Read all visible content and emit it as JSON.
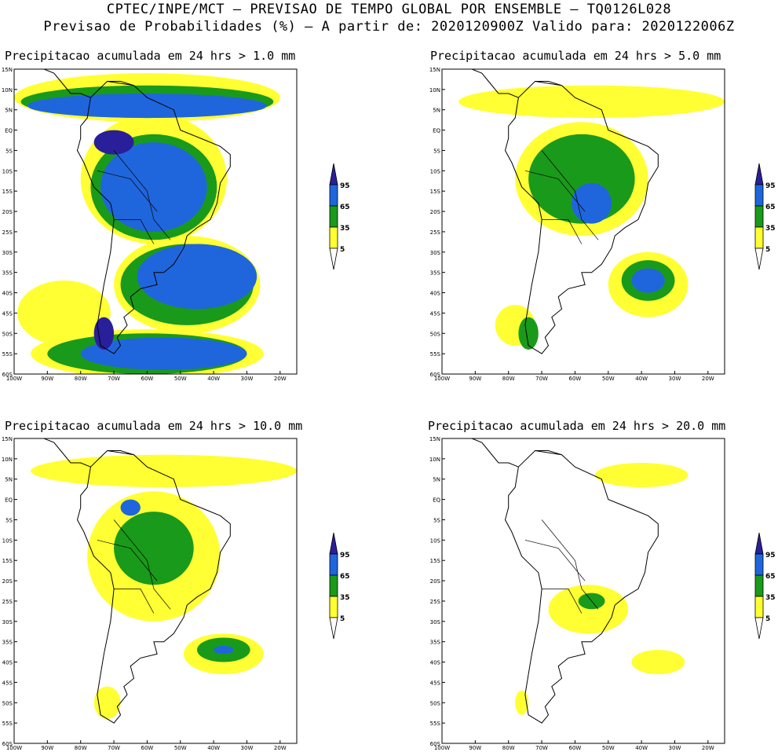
{
  "header": {
    "line1": "CPTEC/INPE/MCT – PREVISAO DE TEMPO GLOBAL POR ENSEMBLE – TQ0126L028",
    "line2": "Previsao de Probabilidades (%) –  A partir de: 2020120900Z  Valido para: 2020122006Z"
  },
  "lat_labels": [
    "15N",
    "10N",
    "5N",
    "EQ",
    "5S",
    "10S",
    "15S",
    "20S",
    "25S",
    "30S",
    "35S",
    "40S",
    "45S",
    "50S",
    "55S",
    "60S"
  ],
  "lon_labels": [
    "100W",
    "90W",
    "80W",
    "70W",
    "60W",
    "50W",
    "40W",
    "30W",
    "20W"
  ],
  "legend_levels": [
    "95",
    "65",
    "35",
    "5"
  ],
  "colors": {
    "c5": "#ffff33",
    "c35": "#1a9a1a",
    "c65": "#1f66dd",
    "c95": "#2a1f9a"
  },
  "panels": [
    {
      "title": "Precipitacao acumulada em 24 hrs > 1.0 mm"
    },
    {
      "title": "Precipitacao acumulada em 24 hrs > 5.0 mm"
    },
    {
      "title": "Precipitacao acumulada em 24 hrs > 10.0 mm"
    },
    {
      "title": "Precipitacao acumulada em 24 hrs > 20.0 mm"
    }
  ]
}
